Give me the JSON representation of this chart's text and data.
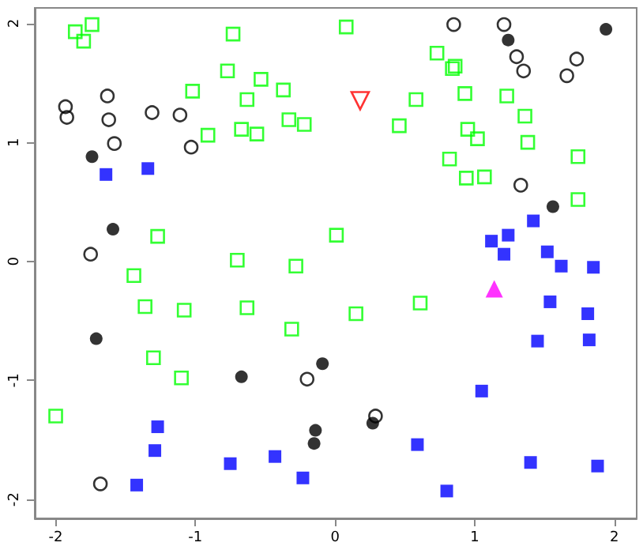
{
  "chart_data": {
    "type": "scatter",
    "xlim": [
      -2.15,
      2.16
    ],
    "ylim": [
      -2.16,
      2.13
    ],
    "xticks": [
      -2,
      -1,
      0,
      1,
      2
    ],
    "yticks": [
      -2,
      -1,
      0,
      1,
      2
    ],
    "grid": false,
    "series": [
      {
        "color": "#00ff00",
        "marker": "square-open",
        "x": [
          -1.86,
          -1.74,
          -1.8,
          -0.73,
          -0.77,
          -0.53,
          -0.37,
          -0.63,
          -1.02,
          -0.33,
          -0.22,
          -0.67,
          -0.56,
          -0.91,
          -1.27,
          0.01,
          -0.7,
          -0.28,
          0.08,
          0.73,
          0.84,
          0.86,
          0.58,
          0.93,
          1.23,
          0.46,
          0.95,
          1.02,
          1.36,
          1.38,
          1.74,
          0.82,
          0.94,
          1.07,
          1.74,
          -1.44,
          -1.36,
          -1.08,
          -0.63,
          -0.31,
          -1.3,
          -1.1,
          -2.0,
          0.15,
          0.61
        ],
        "values": [
          1.93,
          1.99,
          1.85,
          1.91,
          1.6,
          1.53,
          1.44,
          1.36,
          1.43,
          1.19,
          1.15,
          1.11,
          1.07,
          1.06,
          0.21,
          0.22,
          0.01,
          -0.04,
          1.97,
          1.75,
          1.62,
          1.64,
          1.36,
          1.41,
          1.39,
          1.14,
          1.11,
          1.03,
          1.22,
          1.0,
          0.88,
          0.86,
          0.7,
          0.71,
          0.52,
          -0.12,
          -0.38,
          -0.41,
          -0.39,
          -0.57,
          -0.81,
          -0.98,
          -1.3,
          -0.44,
          -0.35
        ]
      },
      {
        "color": "#000000",
        "marker": "circle-open",
        "x": [
          -1.63,
          -1.93,
          -1.92,
          -1.62,
          -1.31,
          -1.11,
          -1.58,
          -1.03,
          -1.75,
          0.85,
          1.21,
          1.3,
          1.73,
          1.35,
          1.66,
          1.33,
          -0.2,
          -1.68,
          0.29
        ],
        "values": [
          1.39,
          1.3,
          1.21,
          1.19,
          1.25,
          1.23,
          0.99,
          0.96,
          0.06,
          1.99,
          1.99,
          1.72,
          1.7,
          1.6,
          1.56,
          0.64,
          -0.99,
          -1.87,
          -1.3
        ]
      },
      {
        "color": "#000000",
        "marker": "circle",
        "x": [
          -1.74,
          -1.59,
          1.94,
          1.24,
          1.56,
          -1.71,
          -0.67,
          -0.09,
          -0.14,
          -0.15,
          0.27
        ],
        "values": [
          0.88,
          0.27,
          1.95,
          1.86,
          0.46,
          -0.65,
          -0.97,
          -0.86,
          -1.42,
          -1.53,
          -1.36
        ]
      },
      {
        "color": "#0000ff",
        "marker": "square",
        "x": [
          -1.64,
          -1.34,
          1.42,
          1.24,
          1.12,
          1.21,
          1.52,
          1.62,
          1.85,
          1.54,
          1.81,
          1.45,
          1.82,
          1.05,
          0.59,
          1.4,
          1.88,
          0.8,
          -1.27,
          -1.29,
          -0.75,
          -0.43,
          -0.23,
          -1.42
        ],
        "values": [
          0.73,
          0.78,
          0.34,
          0.22,
          0.17,
          0.06,
          0.08,
          -0.04,
          -0.05,
          -0.34,
          -0.44,
          -0.67,
          -0.66,
          -1.09,
          -1.54,
          -1.69,
          -1.72,
          -1.93,
          -1.39,
          -1.59,
          -1.7,
          -1.64,
          -1.82,
          -1.88
        ]
      },
      {
        "color": "#ff0000",
        "marker": "triangle-down-open",
        "x": [
          0.18
        ],
        "values": [
          1.35
        ]
      },
      {
        "color": "#ff00ff",
        "marker": "triangle",
        "x": [
          1.14
        ],
        "values": [
          -0.23
        ]
      }
    ]
  }
}
